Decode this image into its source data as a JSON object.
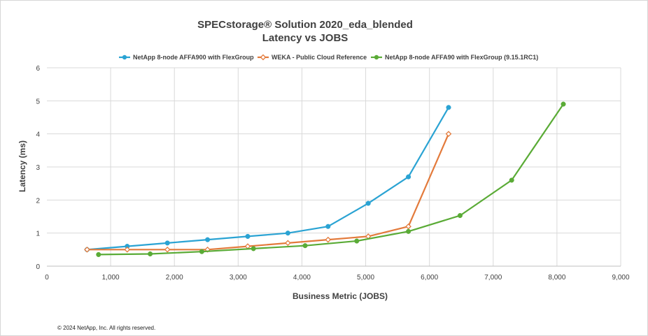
{
  "chart_data": {
    "type": "line",
    "title": "SPECstorage® Solution 2020_eda_blended",
    "subtitle": "Latency vs JOBS",
    "xlabel": "Business Metric (JOBS)",
    "ylabel": "Latency (ms)",
    "xlim": [
      0,
      9000
    ],
    "ylim": [
      0,
      6
    ],
    "x_ticks": [
      0,
      1000,
      2000,
      3000,
      4000,
      5000,
      6000,
      7000,
      8000,
      9000
    ],
    "x_tick_labels": [
      "0",
      "1,000",
      "2,000",
      "3,000",
      "4,000",
      "5,000",
      "6,000",
      "7,000",
      "8,000",
      "9,000"
    ],
    "y_ticks": [
      0,
      1,
      2,
      3,
      4,
      5,
      6
    ],
    "y_tick_labels": [
      "0",
      "1",
      "2",
      "3",
      "4",
      "5",
      "6"
    ],
    "grid": true,
    "legend_position": "top",
    "series": [
      {
        "name": "NetApp 8-node AFFA900 with FlexGroup",
        "color": "#2aa3d3",
        "marker": "filled-circle",
        "x": [
          630,
          1260,
          1890,
          2520,
          3150,
          3780,
          4410,
          5040,
          5670,
          6300
        ],
        "y": [
          0.5,
          0.6,
          0.7,
          0.8,
          0.9,
          1.0,
          1.2,
          1.9,
          2.7,
          4.8
        ]
      },
      {
        "name": "WEKA - Public Cloud Reference",
        "color": "#e37a3b",
        "marker": "hollow-diamond",
        "x": [
          630,
          1260,
          1890,
          2520,
          3150,
          3780,
          4410,
          5040,
          5670,
          6300
        ],
        "y": [
          0.5,
          0.5,
          0.5,
          0.5,
          0.6,
          0.7,
          0.8,
          0.9,
          1.2,
          4.0
        ]
      },
      {
        "name": "NetApp 8-node AFFA90 with FlexGroup (9.15.1RC1)",
        "color": "#5aab36",
        "marker": "filled-circle",
        "x": [
          810,
          1620,
          2430,
          3240,
          4050,
          4860,
          5670,
          6480,
          7290,
          8100
        ],
        "y": [
          0.35,
          0.37,
          0.44,
          0.53,
          0.62,
          0.76,
          1.05,
          1.53,
          2.6,
          4.9
        ]
      }
    ]
  },
  "footer": "© 2024 NetApp, Inc. All rights reserved."
}
